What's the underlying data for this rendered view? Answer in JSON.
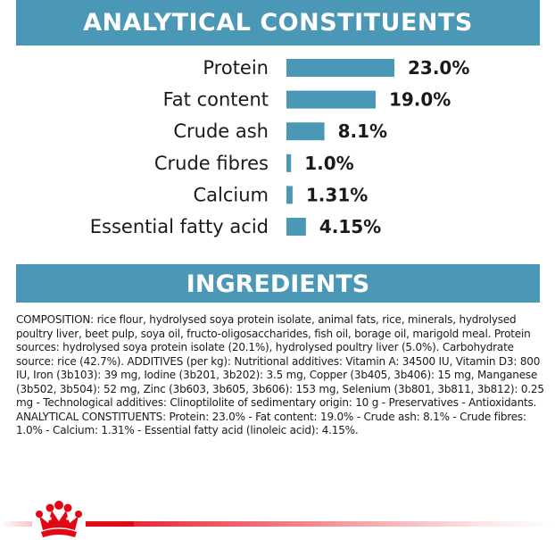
{
  "sections": {
    "analytical_title": "ANALYTICAL CONSTITUENTS",
    "ingredients_title": "INGREDIENTS"
  },
  "colors": {
    "banner": "#4a97b6",
    "bar": "#4a97b6",
    "brand_red": "#e30613"
  },
  "chart_data": {
    "type": "bar",
    "orientation": "horizontal",
    "categories": [
      "Protein",
      "Fat content",
      "Crude ash",
      "Crude fibres",
      "Calcium",
      "Essential fatty acid"
    ],
    "values": [
      23.0,
      19.0,
      8.1,
      1.0,
      1.31,
      4.15
    ],
    "value_labels": [
      "23.0%",
      "19.0%",
      "8.1%",
      "1.0%",
      "1.31%",
      "4.15%"
    ],
    "unit": "%",
    "xlim": [
      0,
      23.0
    ],
    "grid": false,
    "legend": "none"
  },
  "ingredients_text": "COMPOSITION: rice flour, hydrolysed soya protein isolate, animal fats, rice, minerals, hydrolysed poultry liver, beet pulp, soya oil, fructo-oligosaccharides, fish oil, borage oil, marigold meal. Protein sources: hydrolysed soya protein isolate (20.1%), hydrolysed poultry liver (5.0%). Carbohydrate source: rice (42.7%). ADDITIVES (per kg): Nutritional additives: Vitamin A: 34500 IU, Vitamin D3: 800 IU, Iron (3b103): 39 mg, Iodine (3b201, 3b202): 3.5 mg, Copper (3b405, 3b406): 15 mg, Manganese (3b502, 3b504): 52 mg, Zinc (3b603, 3b605, 3b606): 153 mg, Selenium (3b801, 3b811, 3b812): 0.25 mg - Technological additives: Clinoptilolite of sedimentary origin: 10 g - Preservatives - Antioxidants. ANALYTICAL CONSTITUENTS: Protein: 23.0% - Fat content: 19.0% - Crude ash: 8.1% - Crude fibres: 1.0% - Calcium: 1.31% - Essential fatty acid (linoleic acid): 4.15%.",
  "footer": {
    "logo_icon": "crown-icon"
  }
}
